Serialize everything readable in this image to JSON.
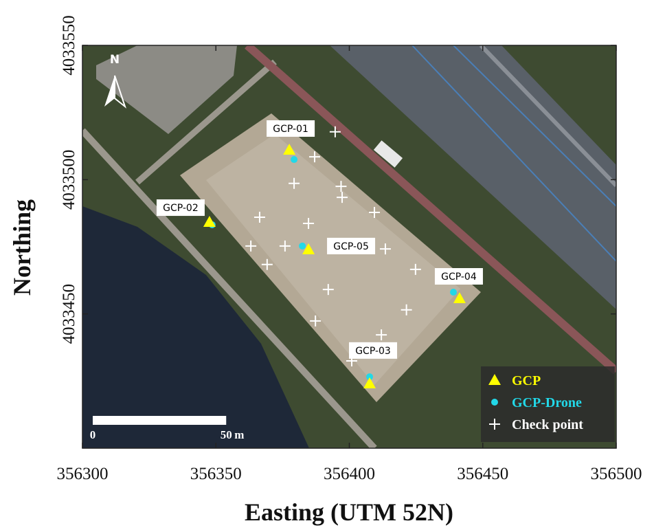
{
  "chart_data": {
    "type": "scatter",
    "xlabel": "Easting (UTM 52N)",
    "ylabel": "Northing",
    "xlim": [
      356300,
      356500
    ],
    "ylim": [
      4033400,
      4033550
    ],
    "xticks": [
      356300,
      356350,
      356400,
      356450,
      356500
    ],
    "yticks": [
      4033450,
      4033500,
      4033550
    ],
    "north_label": "N",
    "scale_bar": {
      "length": 50,
      "labels": [
        "0",
        "50"
      ],
      "unit": "m"
    },
    "series": [
      {
        "name": "GCP",
        "color": "#ffff00",
        "marker": "triangle",
        "labels": [
          "GCP-01",
          "GCP-02",
          "GCP-05",
          "GCP-04",
          "GCP-03"
        ],
        "x": [
          356377.5,
          356347.6,
          356384.7,
          356441.3,
          356407.6
        ],
        "y": [
          4033511.1,
          4033484.2,
          4033474.0,
          4033455.8,
          4033424.1
        ]
      },
      {
        "name": "GCP-Drone",
        "color": "#22d8e8",
        "marker": "circle",
        "x": [
          356379.3,
          356348.6,
          356382.4,
          356439.0,
          356407.6
        ],
        "y": [
          4033507.5,
          4033483.2,
          4033475.3,
          4033458.1,
          4033426.6
        ]
      },
      {
        "name": "Check point",
        "color": "#ffffff",
        "marker": "plus",
        "x": [
          356394.7,
          356387.0,
          356379.3,
          356396.9,
          356397.3,
          356409.4,
          356366.4,
          356384.7,
          356363.1,
          356375.9,
          356413.5,
          356369.2,
          356424.8,
          356392.1,
          356421.4,
          356387.3,
          356412.0,
          356400.9
        ],
        "y": [
          4033517.8,
          4033508.5,
          4033498.6,
          4033497.5,
          4033493.4,
          4033487.8,
          4033486.0,
          4033483.7,
          4033475.3,
          4033475.3,
          4033474.2,
          4033468.4,
          4033466.6,
          4033459.1,
          4033451.5,
          4033447.4,
          4033442.2,
          4033432.5
        ]
      }
    ]
  }
}
